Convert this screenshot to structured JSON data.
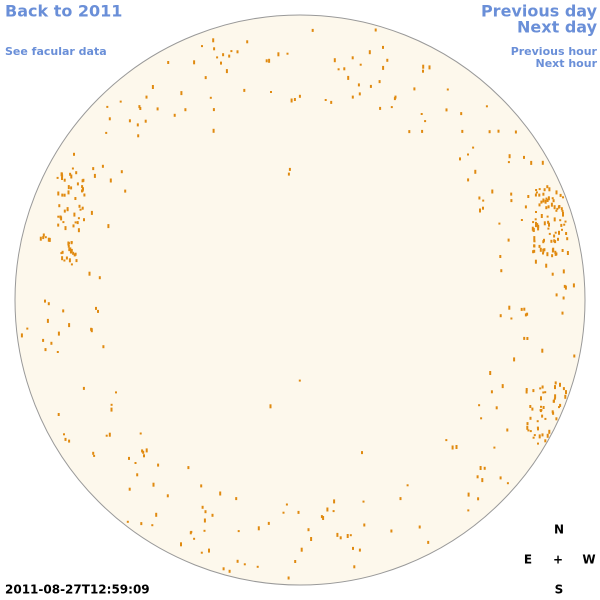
{
  "nav": {
    "back": "Back to 2011",
    "facular": "See facular data",
    "previous_day": "Previous day",
    "next_day": "Next day",
    "previous_hour": "Previous hour",
    "next_hour": "Next hour"
  },
  "compass": {
    "north": "N",
    "east": "E",
    "center": "+",
    "west": "W",
    "south": "S"
  },
  "timestamp": "2011-08-27T12:59:09"
}
